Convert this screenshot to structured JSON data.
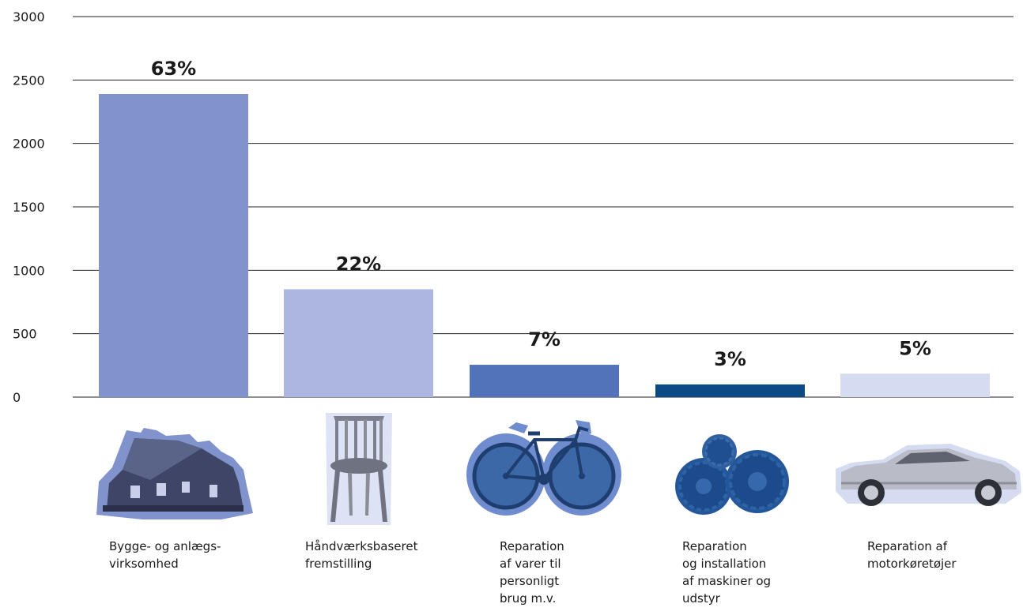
{
  "chart_data": {
    "type": "bar",
    "ylim": [
      0,
      3000
    ],
    "yticks": [
      0,
      500,
      1000,
      1500,
      2000,
      2500,
      3000
    ],
    "grid": true,
    "categories": [
      "Bygge- og anlægs-\nvirksomhed",
      "Håndværksbaseret\nfremstilling",
      "Reparation\naf varer til\npersonligt\nbrug m.v.",
      "Reparation\nog installation\naf maskiner og\nudstyr",
      "Reparation af\nmotorkøretøjer"
    ],
    "values": [
      2390,
      850,
      255,
      100,
      185
    ],
    "data_labels": [
      "63%",
      "22%",
      "7%",
      "3%",
      "5%"
    ],
    "colors": [
      "#8093cc",
      "#adb6e0",
      "#5272ba",
      "#0c4a86",
      "#d5dbf1"
    ],
    "icons": [
      "house-icon",
      "chair-icon",
      "bicycle-icon",
      "gears-icon",
      "car-icon"
    ]
  }
}
